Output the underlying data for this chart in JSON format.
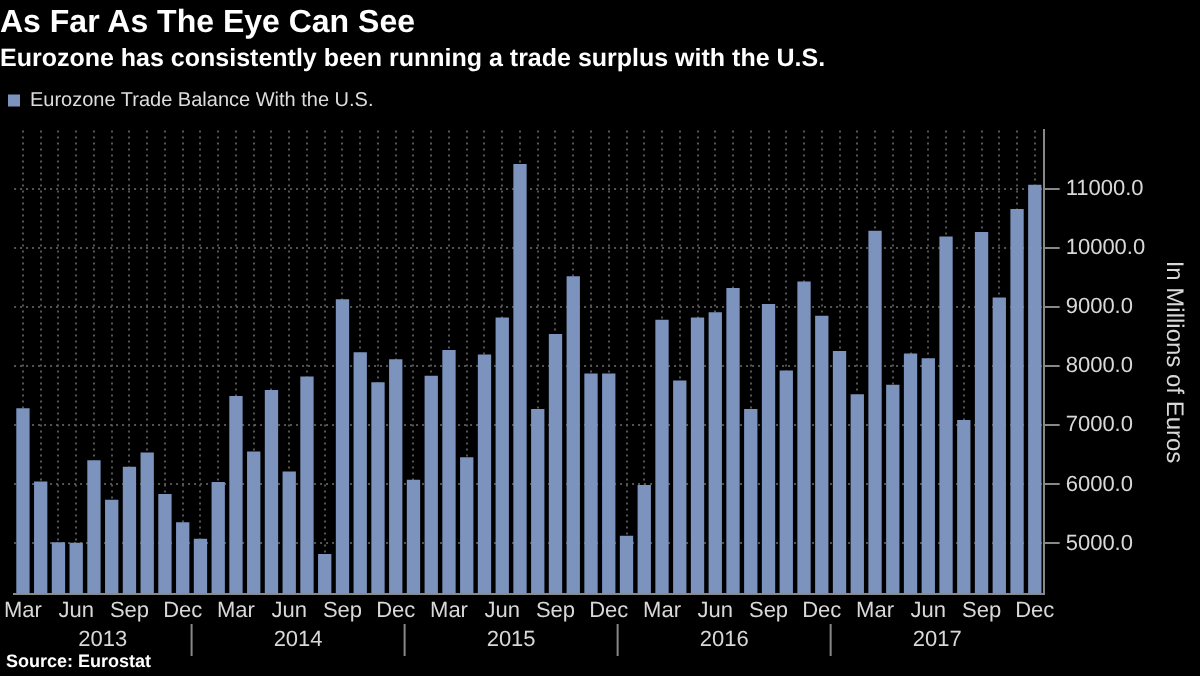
{
  "chart_data": {
    "type": "bar",
    "title": "As Far As The Eye Can See",
    "subtitle": "Eurozone has consistently been running a trade surplus with the U.S.",
    "ylabel": "In Millions of Euros",
    "categories": [
      "Mar",
      null,
      null,
      "Jun",
      null,
      null,
      "Sep",
      null,
      null,
      "Dec",
      null,
      null,
      "Mar",
      null,
      null,
      "Jun",
      null,
      null,
      "Sep",
      null,
      null,
      "Dec",
      null,
      null,
      "Mar",
      null,
      null,
      "Jun",
      null,
      null,
      "Sep",
      null,
      null,
      "Dec",
      null,
      null,
      "Mar",
      null,
      null,
      "Jun",
      null,
      null,
      "Sep",
      null,
      null,
      "Dec",
      null,
      null,
      "Mar",
      null,
      null,
      "Jun",
      null,
      null,
      "Sep",
      null,
      null,
      "Dec"
    ],
    "series": [
      {
        "name": "Eurozone Trade Balance With the U.S.",
        "color": "#7b93bd",
        "values": [
          7290,
          6050,
          5020,
          5010,
          6410,
          5740,
          6300,
          6540,
          5840,
          5360,
          5080,
          6040,
          7500,
          6560,
          7600,
          6220,
          7830,
          4820,
          9140,
          8240,
          7730,
          8120,
          6080,
          7840,
          8280,
          6460,
          8200,
          8830,
          11430,
          7280,
          8550,
          9530,
          7880,
          7880,
          5130,
          5990,
          8790,
          7760,
          8830,
          8920,
          9330,
          7280,
          9060,
          7930,
          9440,
          8860,
          8260,
          7530,
          10300,
          7690,
          8220,
          8140,
          10200,
          7090,
          10280,
          9170,
          10670,
          11080
        ]
      }
    ],
    "ylim": [
      4150,
      12000
    ],
    "yticks": [
      {
        "value": 5000,
        "label": "5000.0"
      },
      {
        "value": 6000,
        "label": "6000.0"
      },
      {
        "value": 7000,
        "label": "7000.0"
      },
      {
        "value": 8000,
        "label": "8000.0"
      },
      {
        "value": 9000,
        "label": "9000.0"
      },
      {
        "value": 10000,
        "label": "10000.0"
      },
      {
        "value": 11000,
        "label": "11000.0"
      }
    ],
    "grid": true,
    "legend": "top left",
    "annotations": [
      "2013",
      "2014",
      "2015",
      "2016",
      "2017",
      "Source: Eurostat"
    ]
  }
}
